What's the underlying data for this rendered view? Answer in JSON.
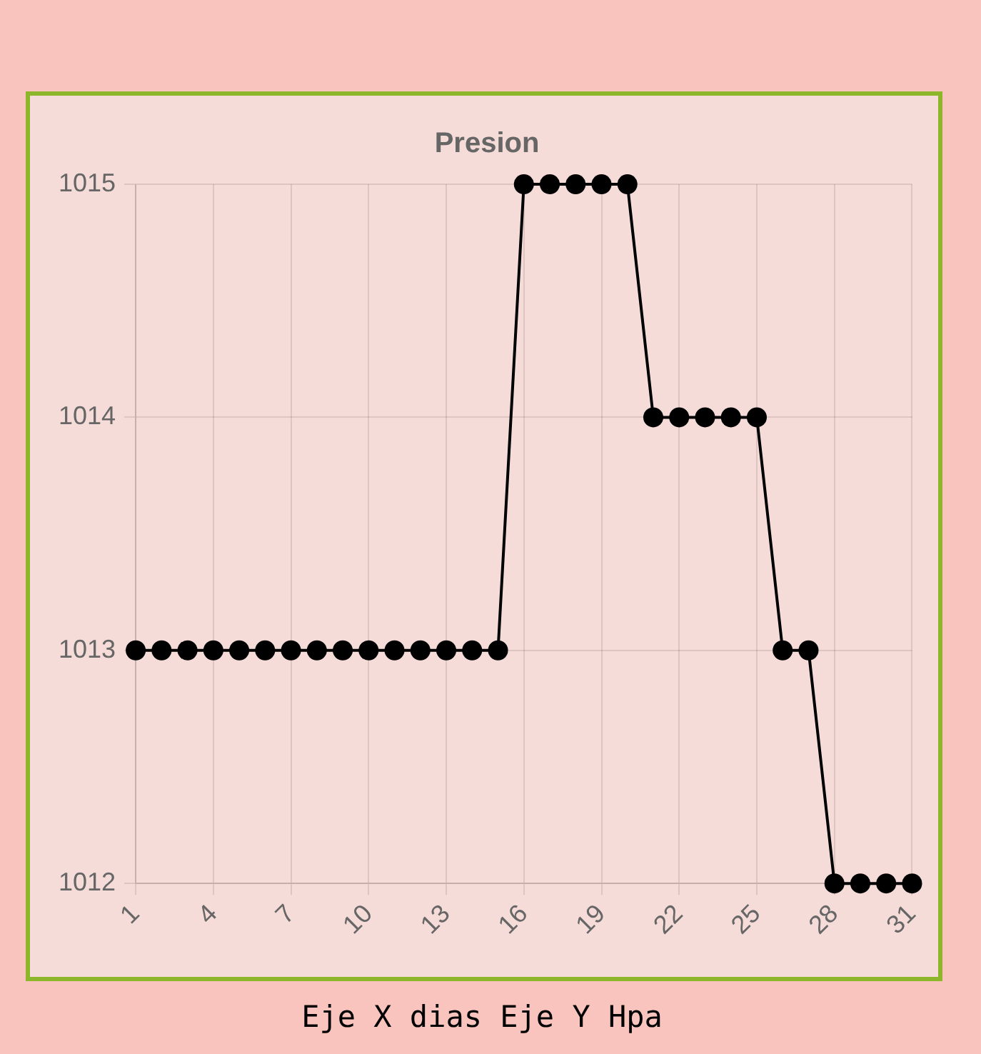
{
  "chart_data": {
    "type": "line",
    "title": "Presion",
    "categories": [
      "1",
      null,
      null,
      "4",
      null,
      null,
      "7",
      null,
      null,
      "10",
      null,
      null,
      "13",
      null,
      null,
      "16",
      null,
      null,
      "19",
      null,
      null,
      "22",
      null,
      null,
      "25",
      null,
      null,
      "28",
      null,
      null,
      "31"
    ],
    "series": [
      {
        "color": "#000000",
        "values": [
          1013,
          1013,
          1013,
          1013,
          1013,
          1013,
          1013,
          1013,
          1013,
          1013,
          1013,
          1013,
          1013,
          1013,
          1013,
          1015,
          1015,
          1015,
          1015,
          1015,
          1014,
          1014,
          1014,
          1014,
          1014,
          1013,
          1013,
          1012,
          1012,
          1012,
          1012
        ]
      }
    ],
    "ylim": [
      1012,
      1015
    ],
    "yticks": [
      1012,
      1013,
      1014,
      1015
    ],
    "grid": true,
    "marker": "circle",
    "line_style": "solid",
    "annotations": [
      "Eje X dias Eje Y Hpa"
    ]
  }
}
